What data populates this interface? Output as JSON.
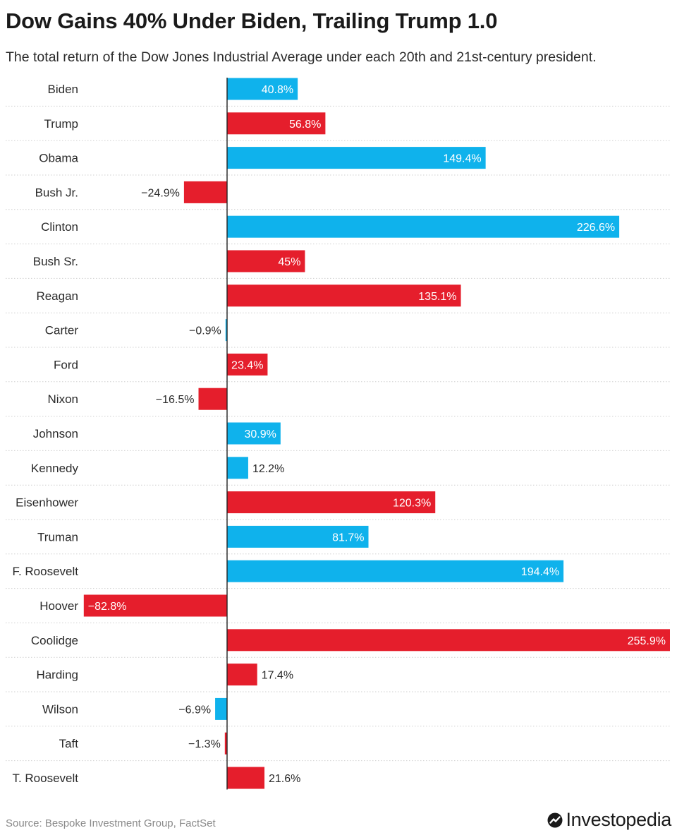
{
  "header": {
    "title": "Dow Gains 40% Under Biden, Trailing Trump 1.0",
    "subtitle": "The total return of the Dow Jones Industrial Average under each 20th and 21st-century president."
  },
  "footer": {
    "source": "Source: Bespoke Investment Group, FactSet",
    "brand": "Investopedia"
  },
  "colors": {
    "democrat": "#0fb2ec",
    "republican": "#e51e2c"
  },
  "chart_data": {
    "type": "bar",
    "orientation": "horizontal",
    "title": "Dow Gains 40% Under Biden, Trailing Trump 1.0",
    "subtitle": "The total return of the Dow Jones Industrial Average under each 20th and 21st-century president.",
    "xlabel": "",
    "ylabel": "",
    "unit": "%",
    "xlim": [
      -82.8,
      255.9
    ],
    "grid": false,
    "categories": [
      "Biden",
      "Trump",
      "Obama",
      "Bush Jr.",
      "Clinton",
      "Bush Sr.",
      "Reagan",
      "Carter",
      "Ford",
      "Nixon",
      "Johnson",
      "Kennedy",
      "Eisenhower",
      "Truman",
      "F. Roosevelt",
      "Hoover",
      "Coolidge",
      "Harding",
      "Wilson",
      "Taft",
      "T. Roosevelt"
    ],
    "values": [
      40.8,
      56.8,
      149.4,
      -24.9,
      226.6,
      45,
      135.1,
      -0.9,
      23.4,
      -16.5,
      30.9,
      12.2,
      120.3,
      81.7,
      194.4,
      -82.8,
      255.9,
      17.4,
      -6.9,
      -1.3,
      21.6
    ],
    "value_labels": [
      "40.8%",
      "56.8%",
      "149.4%",
      "−24.9%",
      "226.6%",
      "45%",
      "135.1%",
      "−0.9%",
      "23.4%",
      "−16.5%",
      "30.9%",
      "12.2%",
      "120.3%",
      "81.7%",
      "194.4%",
      "−82.8%",
      "255.9%",
      "17.4%",
      "−6.9%",
      "−1.3%",
      "21.6%"
    ],
    "party": [
      "democrat",
      "republican",
      "democrat",
      "republican",
      "democrat",
      "republican",
      "republican",
      "democrat",
      "republican",
      "republican",
      "democrat",
      "democrat",
      "republican",
      "democrat",
      "democrat",
      "republican",
      "republican",
      "republican",
      "democrat",
      "republican",
      "republican"
    ]
  }
}
